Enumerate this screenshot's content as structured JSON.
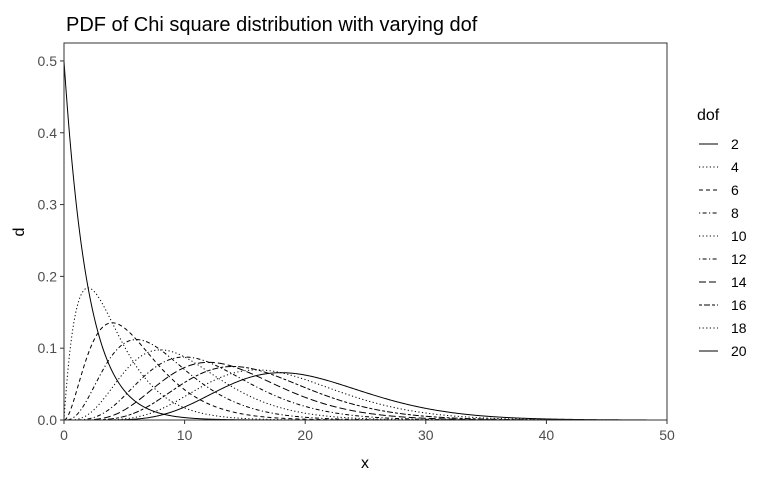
{
  "chart_data": {
    "type": "line",
    "title": "PDF of Chi square distribution with varying dof",
    "xlabel": "x",
    "ylabel": "d",
    "xlim": [
      0,
      50
    ],
    "ylim": [
      0,
      0.5
    ],
    "x_ticks": [
      0,
      10,
      20,
      30,
      40,
      50
    ],
    "y_ticks": [
      0.0,
      0.1,
      0.2,
      0.3,
      0.4,
      0.5
    ],
    "x_tick_labels": [
      "0",
      "10",
      "20",
      "30",
      "40",
      "50"
    ],
    "y_tick_labels": [
      "0.0",
      "0.1",
      "0.2",
      "0.3",
      "0.4",
      "0.5"
    ],
    "x_range_of_curves": [
      0,
      48.3
    ],
    "grid": false,
    "legend": {
      "title": "dof",
      "placement": "right"
    },
    "series": [
      {
        "name": "2",
        "dof": 2,
        "linetype": "solid",
        "points": [
          [
            0,
            0.5
          ],
          [
            2,
            0.184
          ],
          [
            5,
            0.041
          ],
          [
            10,
            0.0034
          ],
          [
            20,
            2e-05
          ]
        ]
      },
      {
        "name": "4",
        "dof": 4,
        "linetype": "dotted",
        "points": [
          [
            0,
            0
          ],
          [
            2,
            0.184
          ],
          [
            5,
            0.103
          ],
          [
            10,
            0.017
          ],
          [
            20,
            0.0005
          ]
        ]
      },
      {
        "name": "6",
        "dof": 6,
        "linetype": "dashed",
        "points": [
          [
            0,
            0
          ],
          [
            4,
            0.135
          ],
          [
            10,
            0.042
          ],
          [
            20,
            0.002
          ]
        ]
      },
      {
        "name": "8",
        "dof": 8,
        "linetype": "dotdash",
        "points": [
          [
            0,
            0
          ],
          [
            6,
            0.112
          ],
          [
            10,
            0.07
          ],
          [
            20,
            0.008
          ]
        ]
      },
      {
        "name": "10",
        "dof": 10,
        "linetype": "dotted",
        "points": [
          [
            0,
            0
          ],
          [
            8,
            0.098
          ],
          [
            10,
            0.088
          ],
          [
            20,
            0.019
          ]
        ]
      },
      {
        "name": "12",
        "dof": 12,
        "linetype": "dotdash",
        "points": [
          [
            0,
            0
          ],
          [
            10,
            0.088
          ],
          [
            20,
            0.038
          ]
        ]
      },
      {
        "name": "14",
        "dof": 14,
        "linetype": "longdash",
        "points": [
          [
            0,
            0
          ],
          [
            12,
            0.08
          ],
          [
            20,
            0.06
          ]
        ]
      },
      {
        "name": "16",
        "dof": 16,
        "linetype": "twodash",
        "points": [
          [
            0,
            0
          ],
          [
            14,
            0.074
          ],
          [
            20,
            0.058
          ]
        ]
      },
      {
        "name": "18",
        "dof": 18,
        "linetype": "dotted",
        "points": [
          [
            0,
            0
          ],
          [
            16,
            0.07
          ],
          [
            20,
            0.062
          ]
        ]
      },
      {
        "name": "20",
        "dof": 20,
        "linetype": "solid",
        "points": [
          [
            0,
            0
          ],
          [
            18,
            0.066
          ],
          [
            20,
            0.063
          ],
          [
            30,
            0.022
          ]
        ]
      }
    ]
  }
}
